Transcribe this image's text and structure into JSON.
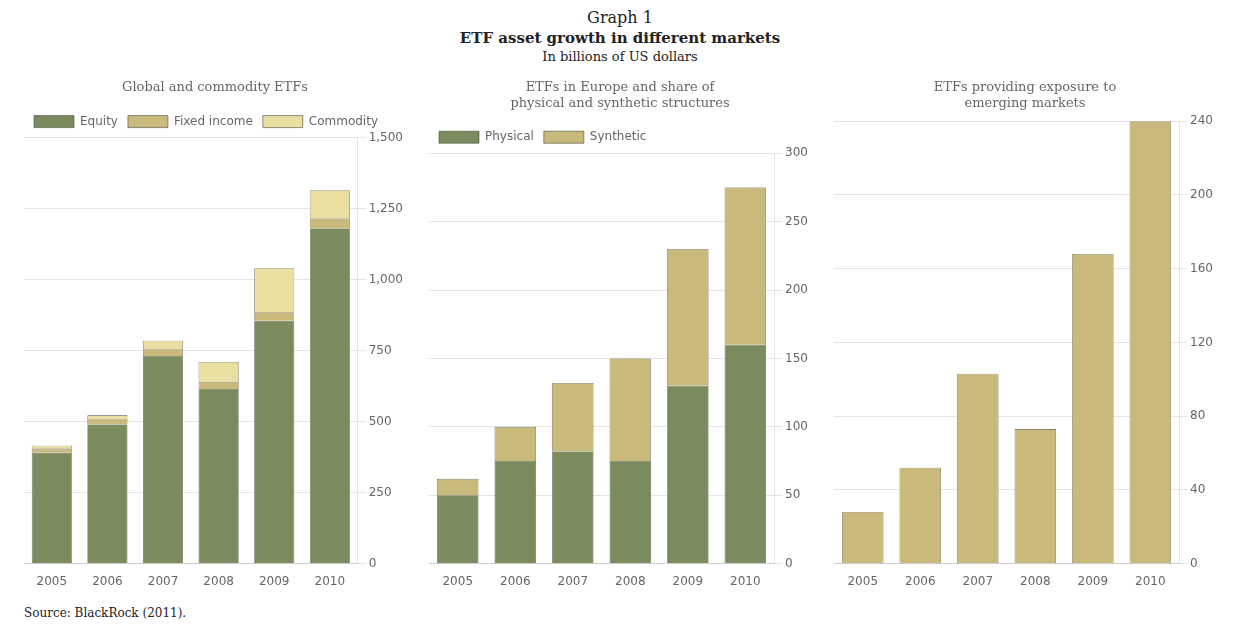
{
  "title": "Graph 1",
  "subtitle": [
    "ETF asset growth in different markets",
    "In billions of US dollars"
  ],
  "annotations": [
    "Source: BlackRock (2011)."
  ],
  "chart_data": [
    {
      "type": "bar",
      "title": "Global and commodity ETFs",
      "categories": [
        "2005",
        "2006",
        "2007",
        "2008",
        "2009",
        "2010"
      ],
      "series": [
        {
          "name": "Equity",
          "color": "#7a8c5e",
          "values": [
            390,
            490,
            730,
            615,
            855,
            1180
          ]
        },
        {
          "name": "Fixed income",
          "color": "#c9b97a",
          "values": [
            15,
            20,
            25,
            25,
            30,
            35
          ]
        },
        {
          "name": "Commodity",
          "color": "#e8dfa0",
          "values": [
            10,
            12,
            30,
            70,
            155,
            100
          ]
        }
      ],
      "stacked": true,
      "ylim": [
        0,
        1500
      ],
      "yticks": [
        0,
        250,
        500,
        750,
        {
          "value": 1000,
          "label": "1,000"
        },
        {
          "value": 1250,
          "label": "1,250"
        },
        {
          "value": 1500,
          "label": "1,500"
        }
      ],
      "grid": true,
      "legend": "upper left"
    },
    {
      "type": "bar",
      "title": "ETFs in Europe and share of\nphysical and synthetic structures",
      "categories": [
        "2005",
        "2006",
        "2007",
        "2008",
        "2009",
        "2010"
      ],
      "series": [
        {
          "name": "Physical",
          "color": "#7a8c5e",
          "values": [
            50,
            75,
            82,
            75,
            130,
            160
          ]
        },
        {
          "name": "Synthetic",
          "color": "#c9b97a",
          "values": [
            12,
            25,
            50,
            75,
            100,
            115
          ]
        }
      ],
      "stacked": true,
      "ylim": [
        0,
        300
      ],
      "yticks": [
        0,
        50,
        100,
        150,
        200,
        250,
        300
      ],
      "grid": true,
      "legend": "upper left"
    },
    {
      "type": "bar",
      "title": "ETFs providing exposure to\nemerging markets",
      "categories": [
        "2005",
        "2006",
        "2007",
        "2008",
        "2009",
        "2010"
      ],
      "values": [
        28,
        52,
        103,
        73,
        168,
        240
      ],
      "color": "#c9b97a",
      "ylim": [
        0,
        240
      ],
      "yticks": [
        0,
        40,
        80,
        120,
        160,
        200,
        240
      ],
      "grid": true
    }
  ]
}
